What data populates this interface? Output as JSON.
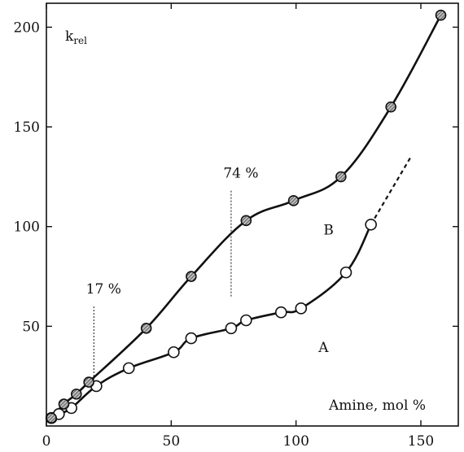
{
  "chart_data": {
    "type": "line",
    "title": "",
    "xlabel": "Amine, mol %",
    "ylabel": "k",
    "ylabel_subscript": "rel",
    "xlim": [
      0,
      165
    ],
    "ylim": [
      0,
      212
    ],
    "x_ticks": [
      0,
      50,
      100,
      150
    ],
    "y_ticks": [
      50,
      100,
      150,
      200
    ],
    "grid": false,
    "series": [
      {
        "name": "A",
        "marker": "open-circle",
        "x": [
          2,
          5,
          10,
          20,
          33,
          51,
          58,
          74,
          80,
          94,
          102,
          120,
          130
        ],
        "y": [
          4,
          6,
          9,
          20,
          29,
          37,
          44,
          49,
          53,
          57,
          59,
          77,
          101
        ],
        "extrapolated": {
          "x": [
            130,
            146
          ],
          "y": [
            101,
            135
          ]
        }
      },
      {
        "name": "B",
        "marker": "hatched-circle",
        "x": [
          2,
          7,
          12,
          17,
          40,
          58,
          80,
          99,
          118,
          138,
          158
        ],
        "y": [
          4,
          11,
          16,
          22,
          49,
          75,
          103,
          113,
          125,
          160,
          206
        ]
      }
    ],
    "annotations": [
      {
        "text": "17 %",
        "x": 19,
        "y_from": 20,
        "y_to": 60
      },
      {
        "text": "74 %",
        "x": 74,
        "y_from": 65,
        "y_to": 118
      }
    ]
  }
}
